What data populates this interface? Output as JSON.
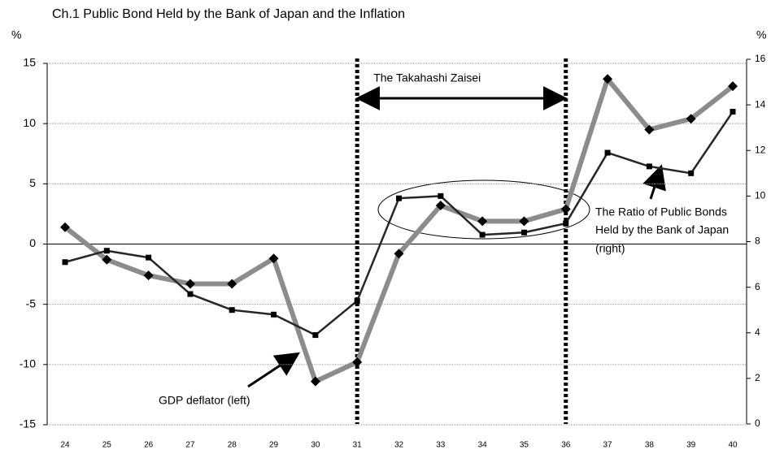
{
  "chart_data": {
    "type": "line",
    "title": "Ch.1   Public Bond Held by the Bank of Japan and the Inflation",
    "y_label": "%",
    "y2_label": "%",
    "categories": [
      "24",
      "25",
      "26",
      "27",
      "28",
      "29",
      "30",
      "31",
      "32",
      "33",
      "34",
      "35",
      "36",
      "37",
      "38",
      "39",
      "40"
    ],
    "series": [
      {
        "name": "GDP deflator (left)",
        "color": "#8c8c8c",
        "axis": "y",
        "values": [
          1.4,
          -1.3,
          -2.6,
          -3.3,
          -3.3,
          -1.2,
          -11.4,
          -9.8,
          -0.8,
          3.2,
          1.9,
          1.9,
          2.9,
          13.7,
          9.5,
          10.4,
          13.1
        ]
      },
      {
        "name": "The Ratio of Public Bonds Held by the Bank of Japan (right)",
        "color": "#262626",
        "axis": "y2",
        "values": [
          7.1,
          7.6,
          7.3,
          5.7,
          5.0,
          4.8,
          3.9,
          5.4,
          9.9,
          10.0,
          8.3,
          8.4,
          8.8,
          11.9,
          11.3,
          11.0,
          13.7
        ]
      }
    ],
    "ylim": [
      -15,
      15
    ],
    "yticks": [
      -15,
      -10,
      -5,
      0,
      5,
      10,
      15
    ],
    "y2lim": [
      0,
      16
    ],
    "y2ticks": [
      0,
      2,
      4,
      6,
      8,
      10,
      12,
      14,
      16
    ],
    "grid": true,
    "period": {
      "label": "The Takahashi Zaisei",
      "range": [
        "31",
        "36"
      ]
    },
    "label_lines": [
      [
        "GDP deflator (left)"
      ],
      [
        "The Ratio of Public Bonds",
        "Held by the Bank of Japan",
        "(right)"
      ]
    ]
  }
}
